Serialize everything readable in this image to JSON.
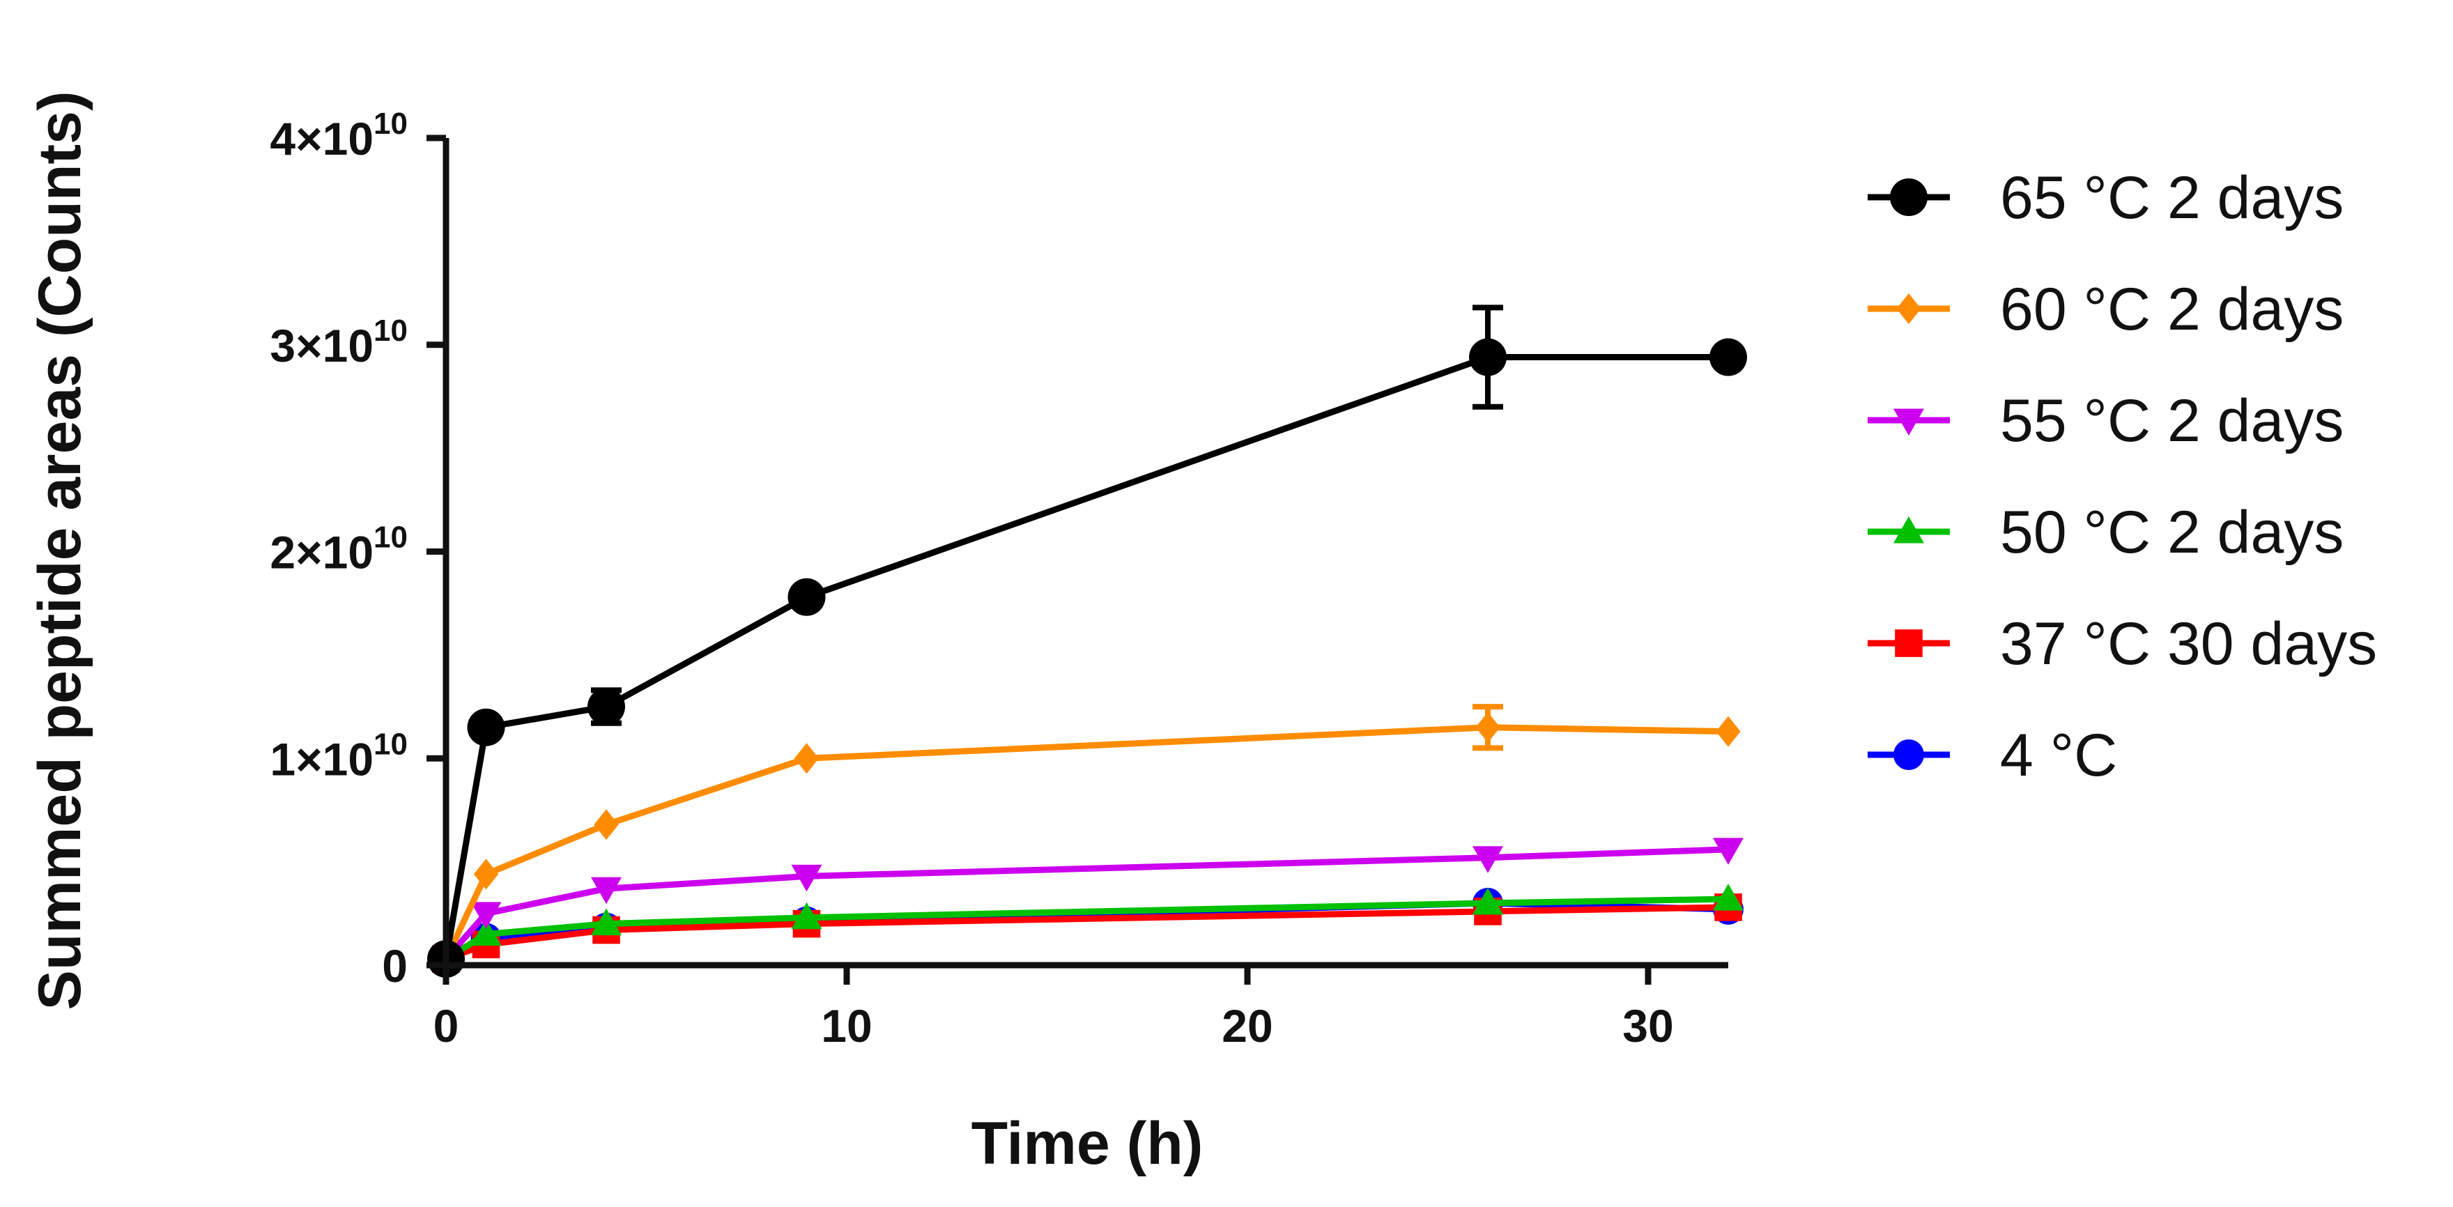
{
  "chart_data": {
    "type": "line",
    "title": "",
    "xlabel": "Time (h)",
    "ylabel": "Summed peptide areas (Counts)",
    "xlim": [
      0,
      32
    ],
    "ylim": [
      0,
      40000000000
    ],
    "x_ticks": [
      0,
      10,
      20,
      30
    ],
    "x_tick_labels": [
      "0",
      "10",
      "20",
      "30"
    ],
    "y_ticks": [
      0,
      10000000000,
      20000000000,
      30000000000,
      40000000000
    ],
    "y_tick_labels": [
      {
        "base": "0",
        "exp": ""
      },
      {
        "base": "1×10",
        "exp": "10"
      },
      {
        "base": "2×10",
        "exp": "10"
      },
      {
        "base": "3×10",
        "exp": "10"
      },
      {
        "base": "4×10",
        "exp": "10"
      }
    ],
    "legend_position": "right",
    "series": [
      {
        "name": "4 °C",
        "color": "#0000ff",
        "marker": "circle",
        "x": [
          0,
          1,
          4,
          9,
          26,
          32
        ],
        "values": [
          300000000,
          1300000000,
          1800000000,
          2100000000,
          3000000000,
          2700000000
        ],
        "errors": [
          0,
          0,
          0,
          0,
          0,
          0
        ]
      },
      {
        "name": "37 °C 30 days",
        "color": "#ff0000",
        "marker": "square",
        "x": [
          0,
          1,
          4,
          9,
          26,
          32
        ],
        "values": [
          300000000,
          1000000000,
          1700000000,
          2000000000,
          2600000000,
          2800000000
        ],
        "errors": [
          0,
          0,
          0,
          0,
          0,
          0
        ]
      },
      {
        "name": "50 °C 2 days",
        "color": "#00c000",
        "marker": "triangle-up",
        "x": [
          0,
          1,
          4,
          9,
          26,
          32
        ],
        "values": [
          300000000,
          1500000000,
          2000000000,
          2300000000,
          3000000000,
          3200000000
        ],
        "errors": [
          0,
          0,
          0,
          0,
          0,
          0
        ]
      },
      {
        "name": "55 °C 2 days",
        "color": "#cc00ee",
        "marker": "triangle-down",
        "x": [
          0,
          1,
          4,
          9,
          26,
          32
        ],
        "values": [
          300000000,
          2500000000,
          3700000000,
          4300000000,
          5200000000,
          5600000000
        ],
        "errors": [
          0,
          0,
          0,
          0,
          0,
          0
        ]
      },
      {
        "name": "60 °C 2 days",
        "color": "#ff8c00",
        "marker": "diamond",
        "x": [
          0,
          1,
          4,
          9,
          26,
          32
        ],
        "values": [
          300000000,
          4400000000,
          6800000000,
          10000000000,
          11500000000,
          11300000000
        ],
        "errors": [
          0,
          0,
          0,
          0,
          1000000000,
          0
        ]
      },
      {
        "name": "65 °C 2 days",
        "color": "#000000",
        "marker": "circle",
        "x": [
          0,
          1,
          4,
          9,
          26,
          32
        ],
        "values": [
          300000000,
          11500000000,
          12500000000,
          17800000000,
          29400000000,
          29400000000
        ],
        "errors": [
          0,
          0,
          800000000,
          0,
          2400000000,
          0
        ]
      }
    ],
    "legend_order": [
      "65 °C 2 days",
      "60 °C 2 days",
      "55 °C 2 days",
      "50 °C 2 days",
      "37 °C 30 days",
      "4 °C"
    ]
  }
}
